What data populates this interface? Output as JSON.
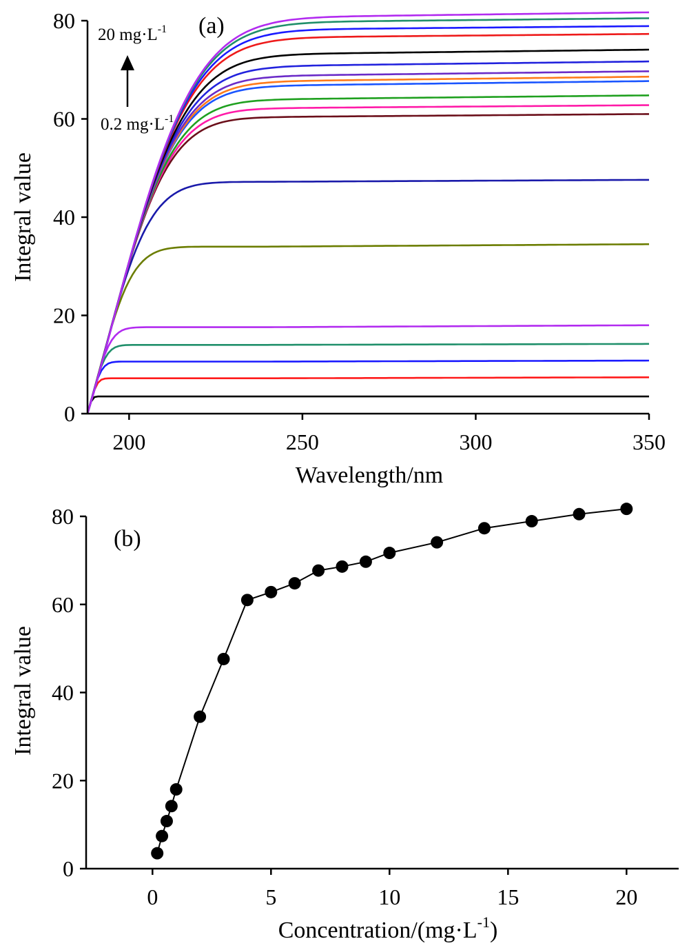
{
  "chart_data": [
    {
      "type": "line",
      "panel_label": "(a)",
      "xlabel": "Wavelength/nm",
      "ylabel": "Integral value",
      "xlim": [
        188,
        350
      ],
      "ylim": [
        0,
        80
      ],
      "xticks": [
        200,
        250,
        300,
        350
      ],
      "yticks": [
        0,
        20,
        40,
        60,
        80
      ],
      "grid": false,
      "curve_shape": {
        "x_start": 188,
        "x_saturation_approx": 232,
        "slope_per_nm": 2.35,
        "drift_to_350": 1.0
      },
      "annotation": {
        "top": "20 mg·L",
        "top_sup": "-1",
        "bottom": "0.2 mg·L",
        "bottom_sup": "-1",
        "arrow": "up"
      },
      "series": [
        {
          "plateau_at_240": 3.5,
          "value_at_350": 3.5,
          "color": "#000000"
        },
        {
          "plateau_at_240": 7.2,
          "value_at_350": 7.4,
          "color": "#ff1a1a"
        },
        {
          "plateau_at_240": 10.6,
          "value_at_350": 10.8,
          "color": "#1a1aff"
        },
        {
          "plateau_at_240": 14.0,
          "value_at_350": 14.2,
          "color": "#1f8f6a"
        },
        {
          "plateau_at_240": 17.6,
          "value_at_350": 18.0,
          "color": "#b22bf0"
        },
        {
          "plateau_at_240": 34.0,
          "value_at_350": 34.5,
          "color": "#6b7d00"
        },
        {
          "plateau_at_240": 47.2,
          "value_at_350": 47.6,
          "color": "#1a1aaa"
        },
        {
          "plateau_at_240": 60.4,
          "value_at_350": 61.0,
          "color": "#6b0f1a"
        },
        {
          "plateau_at_240": 62.2,
          "value_at_350": 62.8,
          "color": "#ff1aa8"
        },
        {
          "plateau_at_240": 64.0,
          "value_at_350": 64.8,
          "color": "#1fa01f"
        },
        {
          "plateau_at_240": 66.8,
          "value_at_350": 67.7,
          "color": "#1a55ff"
        },
        {
          "plateau_at_240": 67.7,
          "value_at_350": 68.6,
          "color": "#ff7a1a"
        },
        {
          "plateau_at_240": 68.8,
          "value_at_350": 69.7,
          "color": "#6a2bc8"
        },
        {
          "plateau_at_240": 70.8,
          "value_at_350": 71.7,
          "color": "#2222dd"
        },
        {
          "plateau_at_240": 73.2,
          "value_at_350": 74.1,
          "color": "#000000"
        },
        {
          "plateau_at_240": 76.6,
          "value_at_350": 77.3,
          "color": "#ee1a1a"
        },
        {
          "plateau_at_240": 78.2,
          "value_at_350": 78.9,
          "color": "#1a1aff"
        },
        {
          "plateau_at_240": 79.7,
          "value_at_350": 80.5,
          "color": "#1f8f6a"
        },
        {
          "plateau_at_240": 80.7,
          "value_at_350": 81.7,
          "color": "#b22bf0"
        }
      ]
    },
    {
      "type": "scatter",
      "panel_label": "(b)",
      "xlabel": "Concentration/(mg·L",
      "xlabel_sup": "-1",
      "xlabel_end": ")",
      "ylabel": "Integral value",
      "xlim": [
        -2.8,
        22.2
      ],
      "ylim": [
        0,
        80
      ],
      "xticks": [
        0,
        5,
        10,
        15,
        20
      ],
      "yticks": [
        0,
        20,
        40,
        60,
        80
      ],
      "grid": false,
      "marker": "filled-circle",
      "connected": true,
      "x": [
        0.2,
        0.4,
        0.6,
        0.8,
        1,
        2,
        3,
        4,
        5,
        6,
        7,
        8,
        9,
        10,
        12,
        14,
        16,
        18,
        20
      ],
      "y": [
        3.5,
        7.4,
        10.8,
        14.2,
        18.0,
        34.5,
        47.6,
        61.0,
        62.8,
        64.8,
        67.7,
        68.6,
        69.7,
        71.7,
        74.1,
        77.3,
        78.9,
        80.5,
        81.7
      ]
    }
  ]
}
